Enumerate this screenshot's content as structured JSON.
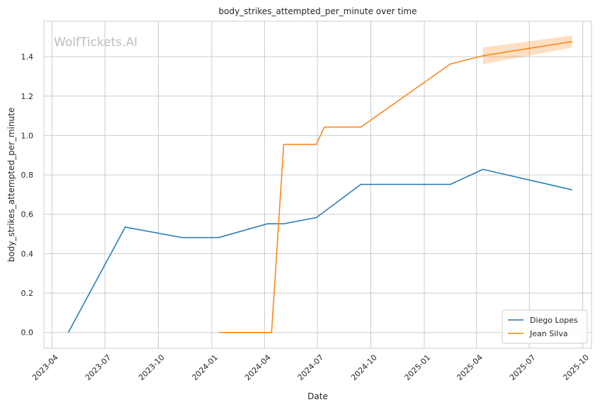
{
  "chart_data": {
    "type": "line",
    "title": "body_strikes_attempted_per_minute over time",
    "xlabel": "Date",
    "ylabel": "body_strikes_attempted_per_minute",
    "watermark": "WolfTickets.AI",
    "grid": true,
    "legend_position": "bottom-right",
    "xlim": [
      "2023-03-18",
      "2025-10-16"
    ],
    "ylim": [
      -0.08,
      1.58
    ],
    "x_ticks": [
      "2023-04",
      "2023-07",
      "2023-10",
      "2024-01",
      "2024-04",
      "2024-07",
      "2024-10",
      "2025-01",
      "2025-04",
      "2025-07",
      "2025-10"
    ],
    "x_tick_dates": [
      "2023-04-01",
      "2023-07-01",
      "2023-10-01",
      "2024-01-01",
      "2024-04-01",
      "2024-07-01",
      "2024-10-01",
      "2025-01-01",
      "2025-04-01",
      "2025-07-01",
      "2025-10-01"
    ],
    "y_ticks": [
      0.0,
      0.2,
      0.4,
      0.6,
      0.8,
      1.0,
      1.2,
      1.4
    ],
    "y_tick_labels": [
      "0.0",
      "0.2",
      "0.4",
      "0.6",
      "0.8",
      "1.0",
      "1.2",
      "1.4"
    ],
    "series": [
      {
        "name": "Diego Lopes",
        "color": "#1f77b4",
        "x": [
          "2023-04-29",
          "2023-08-05",
          "2023-11-11",
          "2024-01-13",
          "2024-04-06",
          "2024-05-04",
          "2024-06-29",
          "2024-09-14",
          "2025-02-15",
          "2025-04-12",
          "2025-09-13"
        ],
        "y": [
          0.0,
          0.535,
          0.482,
          0.482,
          0.552,
          0.552,
          0.583,
          0.752,
          0.752,
          0.828,
          0.724
        ]
      },
      {
        "name": "Jean Silva",
        "color": "#ff7f0e",
        "x": [
          "2024-01-13",
          "2024-04-13",
          "2024-05-04",
          "2024-06-29",
          "2024-07-13",
          "2024-09-14",
          "2025-02-15",
          "2025-04-12",
          "2025-09-13"
        ],
        "y": [
          0.0,
          0.0,
          0.955,
          0.955,
          1.043,
          1.043,
          1.363,
          1.405,
          1.477
        ],
        "band": {
          "x": [
            "2025-04-12",
            "2025-09-13"
          ],
          "lower": [
            1.362,
            1.447
          ],
          "upper": [
            1.447,
            1.508
          ]
        }
      }
    ]
  }
}
